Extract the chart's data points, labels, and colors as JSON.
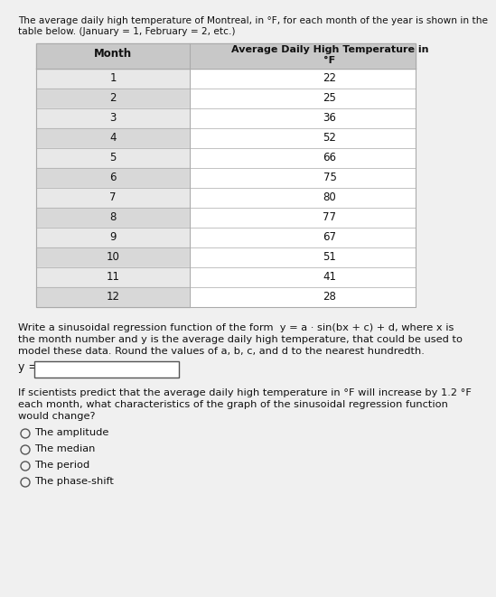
{
  "intro_text": "The average daily high temperature of Montreal, in °F, for each month of the year is shown in the table below. (January = 1, February = 2, etc.)",
  "col1_header": "Month",
  "col2_header_line1": "Average Daily High Temperature in",
  "col2_header_line2": "°F",
  "months": [
    1,
    2,
    3,
    4,
    5,
    6,
    7,
    8,
    9,
    10,
    11,
    12
  ],
  "temperatures": [
    22,
    25,
    36,
    52,
    66,
    75,
    80,
    77,
    67,
    51,
    41,
    28
  ],
  "regression_text_line1": "Write a sinusoidal regression function of the form ",
  "regression_formula": "y = a · sin(bx + c) + d",
  "regression_text_line2": ", where x is",
  "regression_text_line3": "the month number and y is the average daily high temperature, that could be used to",
  "regression_text_line4": "model these data. Round the values of a, b, c, and d to the nearest hundredth.",
  "y_equals_label": "y = ",
  "scientists_text_line1": "If scientists predict that the average daily high temperature in °F will increase by 1.2 °F",
  "scientists_text_line2": "each month, what characteristics of the graph of the sinusoidal regression function",
  "scientists_text_line3": "would change?",
  "options": [
    "The amplitude",
    "The median",
    "The period",
    "The phase-shift"
  ],
  "bg_color": "#f0f0f0",
  "table_header_bg": "#c8c8c8",
  "table_row_light": "#e8e8e8",
  "table_row_dark": "#d8d8d8",
  "table_border_color": "#aaaaaa",
  "text_color": "#111111",
  "box_color": "#ffffff"
}
